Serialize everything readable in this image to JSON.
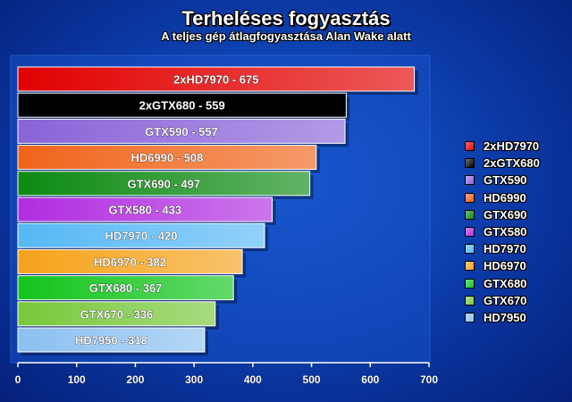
{
  "chart_data": {
    "type": "bar",
    "orientation": "horizontal",
    "title": "Terheléses fogyasztás",
    "subtitle": "A teljes gép átlagfogyasztása Alan Wake alatt",
    "xlabel": "",
    "ylabel": "",
    "xlim": [
      0,
      700
    ],
    "xticks": [
      0,
      100,
      200,
      300,
      400,
      500,
      600,
      700
    ],
    "grid": false,
    "legend_position": "right",
    "bars": [
      {
        "name": "2xHD7970",
        "value": 675,
        "label": "2xHD7970 - 675",
        "color": "#e10000"
      },
      {
        "name": "2xGTX680",
        "value": 559,
        "label": "2xGTX680 - 559",
        "color": "#000000"
      },
      {
        "name": "GTX590",
        "value": 557,
        "label": "GTX590 - 557",
        "color": "#8a63d8"
      },
      {
        "name": "HD6990",
        "value": 508,
        "label": "HD6990 - 508",
        "color": "#f0641a"
      },
      {
        "name": "GTX690",
        "value": 497,
        "label": "GTX690 - 497",
        "color": "#0c8a12"
      },
      {
        "name": "GTX580",
        "value": 433,
        "label": "GTX580 - 433",
        "color": "#b12ce0"
      },
      {
        "name": "HD7970",
        "value": 420,
        "label": "HD7970 - 420",
        "color": "#55b8f5"
      },
      {
        "name": "HD6970",
        "value": 382,
        "label": "HD6970 - 382",
        "color": "#f5a219"
      },
      {
        "name": "GTX680",
        "value": 367,
        "label": "GTX680 - 367",
        "color": "#12c41c"
      },
      {
        "name": "GTX670",
        "value": 336,
        "label": "GTX670 - 336",
        "color": "#78c83a"
      },
      {
        "name": "HD7950",
        "value": 318,
        "label": "HD7950 - 318",
        "color": "#8cc0f0"
      }
    ]
  }
}
